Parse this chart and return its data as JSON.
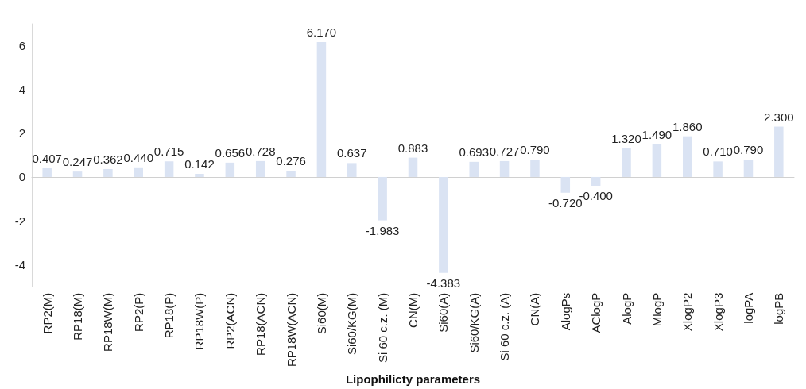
{
  "chart_data": {
    "type": "bar",
    "xlabel": "Lipophilicty parameters",
    "categories": [
      "RP2(M)",
      "RP18(M)",
      "RP18W(M)",
      "RP2(P)",
      "RP18(P)",
      "RP18W(P)",
      "RP2(ACN)",
      "RP18(ACN)",
      "RP18W(ACN)",
      "Si60(M)",
      "Si60/KG(M)",
      "Si 60 c.z. (M)",
      "CN(M)",
      "Si60(A)",
      "Si60/KG(A)",
      "Si 60 c.z. (A)",
      "CN(A)",
      "AlogPs",
      "AClogP",
      "AlogP",
      "MlogP",
      "XlogP2",
      "XlogP3",
      "logPA",
      "logPB"
    ],
    "values": [
      0.407,
      0.247,
      0.362,
      0.44,
      0.715,
      0.142,
      0.656,
      0.728,
      0.276,
      6.17,
      0.637,
      -1.983,
      0.883,
      -4.383,
      0.693,
      0.727,
      0.79,
      -0.72,
      -0.4,
      1.32,
      1.49,
      1.86,
      0.71,
      0.79,
      2.3
    ],
    "value_labels": [
      "0.407",
      "0.247",
      "0.362",
      "0.440",
      "0.715",
      "0.142",
      "0.656",
      "0.728",
      "0.276",
      "6.170",
      "0.637",
      "-1.983",
      "0.883",
      "-4.383",
      "0.693",
      "0.727",
      "0.790",
      "-0.720",
      "-0.400",
      "1.320",
      "1.490",
      "1.860",
      "0.710",
      "0.790",
      "2.300"
    ],
    "color": "#dae3f3",
    "ylim": [
      -5,
      7
    ],
    "yticks": [
      -4,
      -2,
      0,
      2,
      4,
      6
    ]
  }
}
